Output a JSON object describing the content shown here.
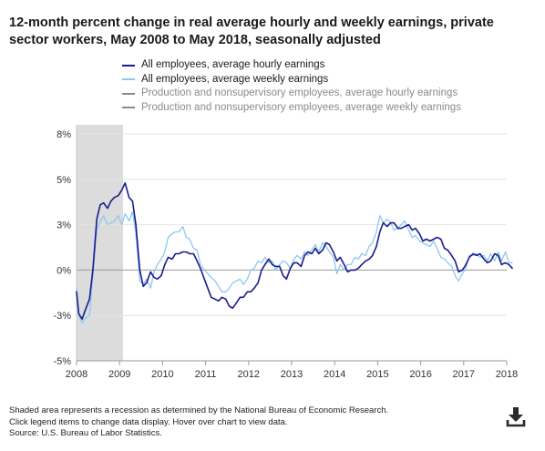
{
  "title": "12-month percent change in real average hourly and weekly earnings, private sector workers, May 2008 to May 2018, seasonally adjusted",
  "legend": [
    {
      "label": "All employees, average hourly earnings",
      "color": "#1b1b8f",
      "active": true
    },
    {
      "label": "All employees, average weekly earnings",
      "color": "#8ec8ee",
      "active": true
    },
    {
      "label": "Production and nonsupervisory employees, average hourly earnings",
      "color": "#8a8a8a",
      "active": false
    },
    {
      "label": "Production and nonsupervisory employees, average weekly earnings",
      "color": "#8a8a8a",
      "active": false
    }
  ],
  "footer": {
    "line1": "Shaded area represents a recession as determined by the National Bureau of Economic Research.",
    "line2": "Click legend items to change data display. Hover over chart to view data.",
    "line3": "Source: U.S. Bureau of Labor Statistics."
  },
  "download": {
    "icon": "download-icon"
  },
  "chart_data": {
    "type": "line",
    "title": "12-month percent change in real average hourly and weekly earnings, private sector workers, May 2008 to May 2018, seasonally adjusted",
    "xlabel": "",
    "ylabel": "",
    "xlim": [
      2008.0,
      2018.0
    ],
    "ylim": [
      -5,
      8
    ],
    "x_ticks": [
      "2008",
      "2009",
      "2010",
      "2011",
      "2012",
      "2013",
      "2014",
      "2015",
      "2016",
      "2017",
      "2018"
    ],
    "y_ticks": [
      "-5%",
      "-3%",
      "0%",
      "3%",
      "5%",
      "8%"
    ],
    "y_tick_values": [
      -5,
      -2.5,
      0,
      2.5,
      5,
      7.5
    ],
    "grid": true,
    "recession": {
      "start": 2008.0,
      "end": 2009.08,
      "color": "#dcdcdc"
    },
    "series": [
      {
        "name": "All employees, average hourly earnings",
        "color": "#1b1b8f",
        "points": [
          [
            2008.0,
            -1.2
          ],
          [
            2008.05,
            -2.4
          ],
          [
            2008.13,
            -2.7
          ],
          [
            2008.22,
            -2.1
          ],
          [
            2008.3,
            -1.6
          ],
          [
            2008.38,
            0.0
          ],
          [
            2008.47,
            2.8
          ],
          [
            2008.55,
            3.6
          ],
          [
            2008.63,
            3.7
          ],
          [
            2008.72,
            3.4
          ],
          [
            2008.8,
            3.8
          ],
          [
            2008.88,
            4.0
          ],
          [
            2008.97,
            4.1
          ],
          [
            2009.05,
            4.4
          ],
          [
            2009.13,
            4.8
          ],
          [
            2009.22,
            4.0
          ],
          [
            2009.3,
            3.8
          ],
          [
            2009.38,
            2.5
          ],
          [
            2009.47,
            0.0
          ],
          [
            2009.55,
            -0.9
          ],
          [
            2009.63,
            -0.7
          ],
          [
            2009.72,
            -0.1
          ],
          [
            2009.8,
            -0.4
          ],
          [
            2009.88,
            -0.5
          ],
          [
            2009.97,
            -0.3
          ],
          [
            2010.05,
            0.3
          ],
          [
            2010.13,
            0.7
          ],
          [
            2010.22,
            0.6
          ],
          [
            2010.3,
            0.9
          ],
          [
            2010.38,
            0.9
          ],
          [
            2010.47,
            1.0
          ],
          [
            2010.55,
            1.0
          ],
          [
            2010.63,
            0.9
          ],
          [
            2010.72,
            0.9
          ],
          [
            2010.8,
            0.5
          ],
          [
            2010.88,
            0.1
          ],
          [
            2010.97,
            -0.5
          ],
          [
            2011.05,
            -1.0
          ],
          [
            2011.13,
            -1.5
          ],
          [
            2011.22,
            -1.6
          ],
          [
            2011.3,
            -1.7
          ],
          [
            2011.38,
            -1.5
          ],
          [
            2011.47,
            -1.6
          ],
          [
            2011.55,
            -2.0
          ],
          [
            2011.63,
            -2.1
          ],
          [
            2011.72,
            -1.8
          ],
          [
            2011.8,
            -1.5
          ],
          [
            2011.88,
            -1.5
          ],
          [
            2011.97,
            -1.2
          ],
          [
            2012.05,
            -1.2
          ],
          [
            2012.13,
            -1.0
          ],
          [
            2012.22,
            -0.7
          ],
          [
            2012.3,
            0.0
          ],
          [
            2012.38,
            0.3
          ],
          [
            2012.47,
            0.6
          ],
          [
            2012.55,
            0.3
          ],
          [
            2012.63,
            0.2
          ],
          [
            2012.72,
            0.2
          ],
          [
            2012.8,
            -0.3
          ],
          [
            2012.88,
            -0.5
          ],
          [
            2012.97,
            0.1
          ],
          [
            2013.05,
            0.4
          ],
          [
            2013.13,
            0.4
          ],
          [
            2013.22,
            0.2
          ],
          [
            2013.3,
            0.8
          ],
          [
            2013.38,
            1.0
          ],
          [
            2013.47,
            0.9
          ],
          [
            2013.55,
            1.2
          ],
          [
            2013.63,
            0.9
          ],
          [
            2013.72,
            1.1
          ],
          [
            2013.8,
            1.5
          ],
          [
            2013.88,
            1.4
          ],
          [
            2013.97,
            1.0
          ],
          [
            2014.05,
            0.5
          ],
          [
            2014.13,
            0.7
          ],
          [
            2014.22,
            0.3
          ],
          [
            2014.3,
            -0.1
          ],
          [
            2014.38,
            0.0
          ],
          [
            2014.47,
            0.0
          ],
          [
            2014.55,
            0.1
          ],
          [
            2014.63,
            0.3
          ],
          [
            2014.72,
            0.5
          ],
          [
            2014.8,
            0.6
          ],
          [
            2014.88,
            0.8
          ],
          [
            2014.97,
            1.3
          ],
          [
            2015.05,
            2.1
          ],
          [
            2015.13,
            2.6
          ],
          [
            2015.22,
            2.4
          ],
          [
            2015.3,
            2.6
          ],
          [
            2015.38,
            2.6
          ],
          [
            2015.47,
            2.3
          ],
          [
            2015.55,
            2.3
          ],
          [
            2015.63,
            2.4
          ],
          [
            2015.72,
            2.5
          ],
          [
            2015.8,
            2.2
          ],
          [
            2015.88,
            2.3
          ],
          [
            2015.97,
            2.0
          ],
          [
            2016.05,
            1.6
          ],
          [
            2016.13,
            1.7
          ],
          [
            2016.22,
            1.6
          ],
          [
            2016.3,
            1.7
          ],
          [
            2016.38,
            1.8
          ],
          [
            2016.47,
            1.7
          ],
          [
            2016.55,
            1.2
          ],
          [
            2016.63,
            1.1
          ],
          [
            2016.72,
            0.8
          ],
          [
            2016.8,
            0.5
          ],
          [
            2016.88,
            -0.1
          ],
          [
            2016.97,
            0.0
          ],
          [
            2017.05,
            0.3
          ],
          [
            2017.13,
            0.7
          ],
          [
            2017.22,
            0.9
          ],
          [
            2017.3,
            0.8
          ],
          [
            2017.38,
            0.9
          ],
          [
            2017.47,
            0.6
          ],
          [
            2017.55,
            0.4
          ],
          [
            2017.63,
            0.5
          ],
          [
            2017.72,
            0.9
          ],
          [
            2017.8,
            0.8
          ],
          [
            2017.88,
            0.3
          ],
          [
            2017.97,
            0.4
          ],
          [
            2018.05,
            0.3
          ],
          [
            2018.13,
            0.1
          ]
        ]
      },
      {
        "name": "All employees, average weekly earnings",
        "color": "#8ec8ee",
        "points": [
          [
            2008.0,
            -1.0
          ],
          [
            2008.05,
            -2.5
          ],
          [
            2008.13,
            -2.9
          ],
          [
            2008.22,
            -2.6
          ],
          [
            2008.3,
            -2.5
          ],
          [
            2008.38,
            -0.3
          ],
          [
            2008.47,
            2.2
          ],
          [
            2008.55,
            2.7
          ],
          [
            2008.63,
            3.0
          ],
          [
            2008.72,
            2.5
          ],
          [
            2008.8,
            2.6
          ],
          [
            2008.88,
            2.7
          ],
          [
            2008.97,
            3.0
          ],
          [
            2009.05,
            2.5
          ],
          [
            2009.13,
            3.1
          ],
          [
            2009.22,
            2.7
          ],
          [
            2009.3,
            3.2
          ],
          [
            2009.38,
            2.0
          ],
          [
            2009.47,
            -0.6
          ],
          [
            2009.55,
            -0.8
          ],
          [
            2009.63,
            -0.5
          ],
          [
            2009.72,
            -1.0
          ],
          [
            2009.8,
            -0.1
          ],
          [
            2009.88,
            0.3
          ],
          [
            2009.97,
            0.6
          ],
          [
            2010.05,
            1.0
          ],
          [
            2010.13,
            1.8
          ],
          [
            2010.22,
            2.0
          ],
          [
            2010.3,
            2.1
          ],
          [
            2010.38,
            2.1
          ],
          [
            2010.47,
            2.4
          ],
          [
            2010.55,
            1.8
          ],
          [
            2010.63,
            1.7
          ],
          [
            2010.72,
            1.2
          ],
          [
            2010.8,
            1.1
          ],
          [
            2010.88,
            0.3
          ],
          [
            2010.97,
            0.0
          ],
          [
            2011.05,
            -0.2
          ],
          [
            2011.13,
            -0.4
          ],
          [
            2011.22,
            -0.6
          ],
          [
            2011.3,
            -0.9
          ],
          [
            2011.38,
            -1.2
          ],
          [
            2011.47,
            -1.2
          ],
          [
            2011.55,
            -1.0
          ],
          [
            2011.63,
            -0.7
          ],
          [
            2011.72,
            -0.6
          ],
          [
            2011.8,
            -0.5
          ],
          [
            2011.88,
            -0.8
          ],
          [
            2011.97,
            -0.5
          ],
          [
            2012.05,
            0.0
          ],
          [
            2012.13,
            0.1
          ],
          [
            2012.22,
            0.5
          ],
          [
            2012.3,
            0.4
          ],
          [
            2012.38,
            0.7
          ],
          [
            2012.47,
            0.4
          ],
          [
            2012.55,
            0.5
          ],
          [
            2012.63,
            0.0
          ],
          [
            2012.72,
            0.3
          ],
          [
            2012.8,
            0.5
          ],
          [
            2012.88,
            0.4
          ],
          [
            2012.97,
            0.1
          ],
          [
            2013.05,
            0.6
          ],
          [
            2013.13,
            0.8
          ],
          [
            2013.22,
            0.6
          ],
          [
            2013.3,
            1.0
          ],
          [
            2013.38,
            0.8
          ],
          [
            2013.47,
            1.1
          ],
          [
            2013.55,
            1.4
          ],
          [
            2013.63,
            1.0
          ],
          [
            2013.72,
            1.5
          ],
          [
            2013.8,
            1.3
          ],
          [
            2013.88,
            1.0
          ],
          [
            2013.97,
            0.7
          ],
          [
            2014.05,
            -0.2
          ],
          [
            2014.13,
            0.3
          ],
          [
            2014.22,
            0.0
          ],
          [
            2014.3,
            0.3
          ],
          [
            2014.38,
            0.3
          ],
          [
            2014.47,
            0.7
          ],
          [
            2014.55,
            0.6
          ],
          [
            2014.63,
            0.9
          ],
          [
            2014.72,
            0.8
          ],
          [
            2014.8,
            1.3
          ],
          [
            2014.88,
            1.5
          ],
          [
            2014.97,
            2.1
          ],
          [
            2015.05,
            3.0
          ],
          [
            2015.13,
            2.6
          ],
          [
            2015.22,
            2.8
          ],
          [
            2015.3,
            2.6
          ],
          [
            2015.38,
            2.2
          ],
          [
            2015.47,
            2.3
          ],
          [
            2015.55,
            2.5
          ],
          [
            2015.63,
            2.7
          ],
          [
            2015.72,
            2.2
          ],
          [
            2015.8,
            1.8
          ],
          [
            2015.88,
            1.9
          ],
          [
            2015.97,
            1.6
          ],
          [
            2016.05,
            1.5
          ],
          [
            2016.13,
            1.4
          ],
          [
            2016.22,
            1.3
          ],
          [
            2016.3,
            1.6
          ],
          [
            2016.38,
            1.2
          ],
          [
            2016.47,
            0.7
          ],
          [
            2016.55,
            0.6
          ],
          [
            2016.63,
            0.4
          ],
          [
            2016.72,
            0.2
          ],
          [
            2016.8,
            -0.3
          ],
          [
            2016.88,
            -0.6
          ],
          [
            2016.97,
            -0.2
          ],
          [
            2017.05,
            0.1
          ],
          [
            2017.13,
            0.8
          ],
          [
            2017.22,
            0.8
          ],
          [
            2017.3,
            0.9
          ],
          [
            2017.38,
            0.7
          ],
          [
            2017.47,
            0.8
          ],
          [
            2017.55,
            0.5
          ],
          [
            2017.63,
            0.9
          ],
          [
            2017.72,
            0.5
          ],
          [
            2017.8,
            1.0
          ],
          [
            2017.88,
            0.5
          ],
          [
            2017.97,
            1.0
          ],
          [
            2018.05,
            0.4
          ],
          [
            2018.13,
            0.4
          ]
        ]
      }
    ]
  }
}
